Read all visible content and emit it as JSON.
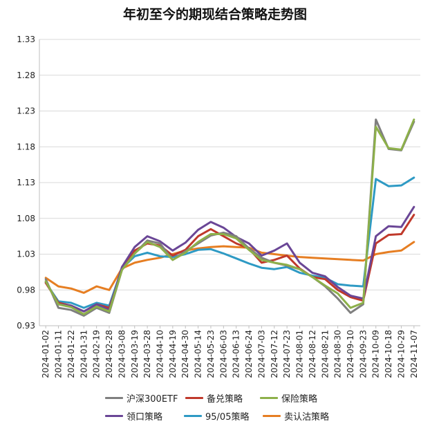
{
  "chart_data": {
    "type": "line",
    "title": "年初至今的期现结合策略走势图",
    "ylim": [
      0.93,
      1.33
    ],
    "yticks": [
      "0.93",
      "0.98",
      "1.03",
      "1.08",
      "1.13",
      "1.18",
      "1.23",
      "1.28",
      "1.33"
    ],
    "xtick_labels": [
      "2024-01-02",
      "2024-01-11",
      "2024-01-22",
      "2024-01-31",
      "2024-02-19",
      "2024-02-28",
      "2024-03-08",
      "2024-03-19",
      "2024-03-28",
      "2024-04-10",
      "2024-04-19",
      "2024-04-30",
      "2024-05-14",
      "2024-05-23",
      "2024-06-03",
      "2024-06-13",
      "2024-06-24",
      "2024-07-03",
      "2024-07-12",
      "2024-07-23",
      "2024-08-01",
      "2024-08-12",
      "2024-08-21",
      "2024-08-30",
      "2024-09-10",
      "2024-09-23",
      "2024-10-09",
      "2024-10-18",
      "2024-10-29",
      "2024-11-07"
    ],
    "series": [
      {
        "name": "沪深300ETF",
        "color": "#7f7f7f",
        "values": [
          0.995,
          0.955,
          0.952,
          0.944,
          0.955,
          0.948,
          1.008,
          1.031,
          1.049,
          1.045,
          1.022,
          1.034,
          1.045,
          1.056,
          1.06,
          1.055,
          1.038,
          1.025,
          1.018,
          1.014,
          1.009,
          0.998,
          0.985,
          0.968,
          0.948,
          0.96,
          1.218,
          1.177,
          1.175,
          1.215
        ]
      },
      {
        "name": "备兑策略",
        "color": "#c0392b",
        "values": [
          0.99,
          0.962,
          0.958,
          0.95,
          0.96,
          0.955,
          1.008,
          1.035,
          1.045,
          1.042,
          1.028,
          1.036,
          1.055,
          1.065,
          1.055,
          1.045,
          1.038,
          1.018,
          1.022,
          1.028,
          1.01,
          0.998,
          0.995,
          0.98,
          0.97,
          0.965,
          1.045,
          1.057,
          1.058,
          1.085
        ]
      },
      {
        "name": "保险策略",
        "color": "#8db04a",
        "values": [
          0.992,
          0.96,
          0.956,
          0.946,
          0.957,
          0.95,
          1.008,
          1.031,
          1.047,
          1.04,
          1.022,
          1.032,
          1.047,
          1.058,
          1.058,
          1.052,
          1.036,
          1.022,
          1.018,
          1.015,
          1.009,
          0.998,
          0.986,
          0.975,
          0.955,
          0.962,
          1.208,
          1.178,
          1.176,
          1.218
        ]
      },
      {
        "name": "领口策略",
        "color": "#6a4696",
        "values": [
          0.992,
          0.96,
          0.958,
          0.95,
          0.96,
          0.952,
          1.012,
          1.04,
          1.055,
          1.048,
          1.035,
          1.046,
          1.064,
          1.075,
          1.067,
          1.054,
          1.045,
          1.028,
          1.035,
          1.045,
          1.018,
          1.004,
          0.999,
          0.984,
          0.972,
          0.968,
          1.055,
          1.069,
          1.068,
          1.096
        ]
      },
      {
        "name": "95/05策略",
        "color": "#2e9ac4",
        "values": [
          0.99,
          0.964,
          0.962,
          0.955,
          0.962,
          0.958,
          1.01,
          1.027,
          1.032,
          1.027,
          1.026,
          1.03,
          1.036,
          1.037,
          1.031,
          1.024,
          1.017,
          1.011,
          1.009,
          1.012,
          1.004,
          1.0,
          0.997,
          0.988,
          0.986,
          0.985,
          1.135,
          1.125,
          1.126,
          1.137
        ]
      },
      {
        "name": "卖认沽策略",
        "color": "#e67e22",
        "values": [
          0.997,
          0.985,
          0.982,
          0.976,
          0.985,
          0.98,
          1.01,
          1.018,
          1.022,
          1.025,
          1.03,
          1.035,
          1.038,
          1.04,
          1.041,
          1.04,
          1.039,
          1.032,
          1.03,
          1.028,
          1.026,
          1.025,
          1.024,
          1.023,
          1.022,
          1.021,
          1.03,
          1.033,
          1.035,
          1.047
        ]
      }
    ]
  }
}
